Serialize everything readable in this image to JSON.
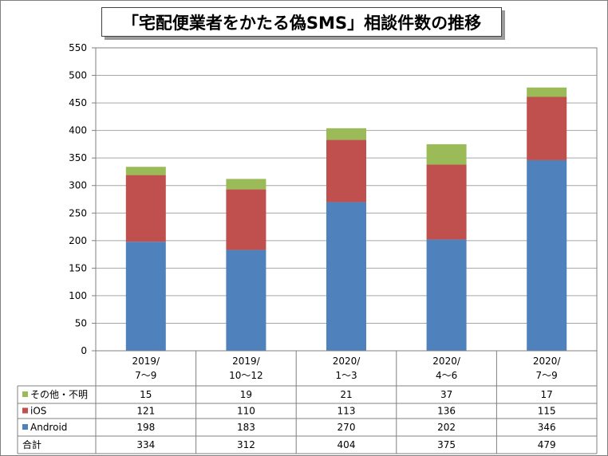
{
  "chart_data": {
    "type": "bar",
    "stacked": true,
    "title": "「宅配便業者をかたる偽SMS」相談件数の推移",
    "categories": [
      [
        "2019/",
        "7～9"
      ],
      [
        "2019/",
        "10～12"
      ],
      [
        "2020/",
        "1～3"
      ],
      [
        "2020/",
        "4～6"
      ],
      [
        "2020/",
        "7～9"
      ]
    ],
    "ylim": [
      0,
      550
    ],
    "yticks": [
      0,
      50,
      100,
      150,
      200,
      250,
      300,
      350,
      400,
      450,
      500,
      550
    ],
    "grid": true,
    "series": [
      {
        "name": "Android",
        "color": "#4f81bd",
        "values": [
          198,
          183,
          270,
          202,
          346
        ]
      },
      {
        "name": "iOS",
        "color": "#c0504d",
        "values": [
          121,
          110,
          113,
          136,
          115
        ]
      },
      {
        "name": "その他・不明",
        "color": "#9bbb59",
        "values": [
          15,
          19,
          21,
          37,
          17
        ]
      }
    ],
    "data_table": {
      "rows": [
        {
          "label": "その他・不明",
          "series_index": 2,
          "values": [
            15,
            19,
            21,
            37,
            17
          ]
        },
        {
          "label": "iOS",
          "series_index": 1,
          "values": [
            121,
            110,
            113,
            136,
            115
          ]
        },
        {
          "label": "Android",
          "series_index": 0,
          "values": [
            198,
            183,
            270,
            202,
            346
          ]
        },
        {
          "label": "合計",
          "series_index": null,
          "values": [
            334,
            312,
            404,
            375,
            479
          ]
        }
      ]
    }
  }
}
